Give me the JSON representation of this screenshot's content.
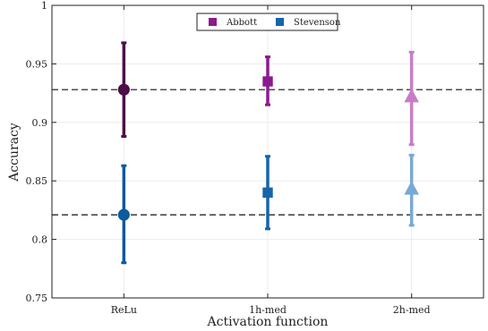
{
  "chart_data": {
    "type": "scatter",
    "title": "",
    "xlabel": "Activation function",
    "ylabel": "Accuracy",
    "categories": [
      "ReLu",
      "1h-med",
      "2h-med"
    ],
    "ylim": [
      0.75,
      1.0
    ],
    "yticks": [
      0.75,
      0.8,
      0.85,
      0.9,
      0.95,
      1.0
    ],
    "ytick_labels": [
      "0.75",
      "0.8",
      "0.85",
      "0.9",
      "0.95",
      "1"
    ],
    "grid": true,
    "legend_placement": "top-center",
    "legend": [
      {
        "name": "Abbott",
        "color": "#8b1a8e",
        "marker": "square"
      },
      {
        "name": "Stevenson",
        "color": "#1565a8",
        "marker": "square"
      }
    ],
    "series": [
      {
        "name": "Abbott",
        "points": [
          {
            "category": "ReLu",
            "value": 0.928,
            "err_low": 0.888,
            "err_high": 0.968,
            "color": "#4e0e4a",
            "marker": "circle"
          },
          {
            "category": "1h-med",
            "value": 0.935,
            "err_low": 0.915,
            "err_high": 0.956,
            "color": "#8b1a8e",
            "marker": "square"
          },
          {
            "category": "2h-med",
            "value": 0.922,
            "err_low": 0.881,
            "err_high": 0.96,
            "color": "#c77dc5",
            "marker": "triangle"
          }
        ]
      },
      {
        "name": "Stevenson",
        "points": [
          {
            "category": "ReLu",
            "value": 0.821,
            "err_low": 0.78,
            "err_high": 0.863,
            "color": "#0d5a9c",
            "marker": "circle"
          },
          {
            "category": "1h-med",
            "value": 0.84,
            "err_low": 0.809,
            "err_high": 0.871,
            "color": "#1565a8",
            "marker": "square"
          },
          {
            "category": "2h-med",
            "value": 0.843,
            "err_low": 0.812,
            "err_high": 0.872,
            "color": "#79a8d6",
            "marker": "triangle"
          }
        ]
      }
    ],
    "reference_lines": [
      {
        "value": 0.928,
        "style": "dashed"
      },
      {
        "value": 0.821,
        "style": "dashed"
      }
    ]
  }
}
